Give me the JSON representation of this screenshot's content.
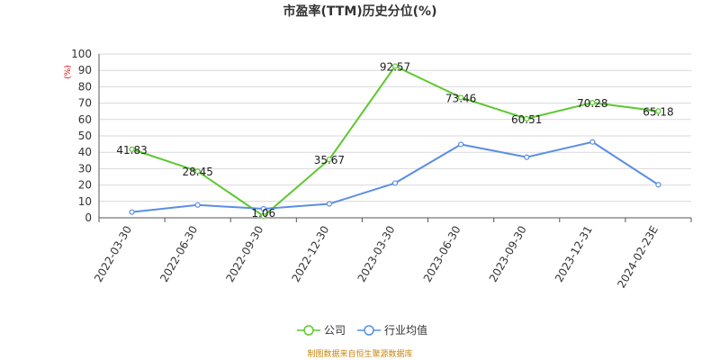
{
  "chart_data": {
    "type": "line",
    "title": "市盈率(TTM)历史分位(%)",
    "ylabel": "(%)",
    "ylim": [
      0,
      100
    ],
    "yticks": [
      0,
      10,
      20,
      30,
      40,
      50,
      60,
      70,
      80,
      90,
      100
    ],
    "categories": [
      "2022-03-30",
      "2022-06-30",
      "2022-09-30",
      "2022-12-30",
      "2023-03-30",
      "2023-06-30",
      "2023-09-30",
      "2023-12-31",
      "2024-02-23E"
    ],
    "grid": true,
    "legend_position": "bottom",
    "series": [
      {
        "name": "公司",
        "color": "#5cc82e",
        "values": [
          41.83,
          28.45,
          1.06,
          35.67,
          92.57,
          73.46,
          60.51,
          70.28,
          65.18
        ],
        "labels": [
          "41.83",
          "28.45",
          "1.06",
          "35.67",
          "92.57",
          "73.46",
          "60.51",
          "70.28",
          "65.18"
        ]
      },
      {
        "name": "行业均值",
        "color": "#5b8ee6",
        "values": [
          3.5,
          7.8,
          5.5,
          8.5,
          21.2,
          44.8,
          37.0,
          46.3,
          20.2
        ]
      }
    ],
    "source": "制图数据来自恒生聚源数据库"
  }
}
